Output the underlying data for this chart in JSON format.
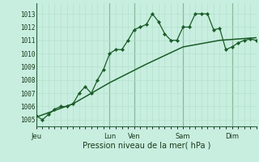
{
  "xlabel": "Pression niveau de la mer( hPa )",
  "bg_color": "#c8eee0",
  "grid_color_minor": "#b0ddc8",
  "grid_color_major": "#88bb99",
  "line_color": "#1a5c28",
  "ylim": [
    1004.5,
    1013.8
  ],
  "yticks": [
    1005,
    1006,
    1007,
    1008,
    1009,
    1010,
    1011,
    1012,
    1013
  ],
  "day_labels": [
    "Jeu",
    "Lun",
    "Ven",
    "Sam",
    "Dim"
  ],
  "day_positions": [
    0,
    72,
    96,
    144,
    192
  ],
  "total_hours": 216,
  "line1_x": [
    0,
    6,
    12,
    18,
    24,
    30,
    36,
    42,
    48,
    54,
    60,
    66,
    72,
    78,
    84,
    90,
    96,
    102,
    108,
    114,
    120,
    126,
    132,
    138,
    144,
    150,
    156,
    162,
    168,
    174,
    180,
    186,
    192,
    198,
    204,
    210,
    216
  ],
  "line1_y": [
    1005.3,
    1005.0,
    1005.4,
    1005.8,
    1006.0,
    1006.0,
    1006.2,
    1007.0,
    1007.5,
    1007.0,
    1008.0,
    1008.8,
    1010.0,
    1010.3,
    1010.3,
    1011.0,
    1011.8,
    1012.0,
    1012.2,
    1013.0,
    1012.4,
    1011.5,
    1011.0,
    1011.0,
    1012.0,
    1012.0,
    1013.0,
    1013.0,
    1013.0,
    1011.8,
    1011.9,
    1010.3,
    1010.5,
    1010.8,
    1011.0,
    1011.1,
    1011.0
  ],
  "line2_x": [
    0,
    36,
    72,
    108,
    144,
    180,
    216
  ],
  "line2_y": [
    1005.2,
    1006.2,
    1007.8,
    1009.2,
    1010.5,
    1011.0,
    1011.2
  ]
}
